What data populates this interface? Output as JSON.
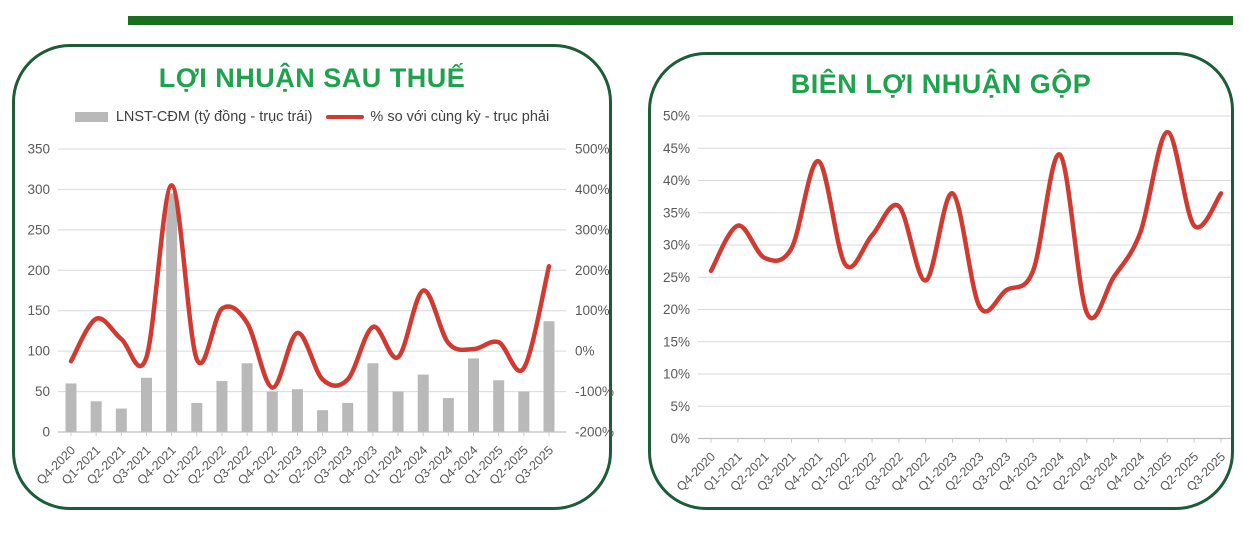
{
  "colors": {
    "top_bar": "#1b6e1f",
    "panel_border": "#1d5c38",
    "title_green": "#1ea24e",
    "bar_gray": "#b9b9b9",
    "line_red": "#d13a30",
    "grid": "#d9d9d9",
    "axis_line": "#bfbfbf",
    "tick": "#c8c8c8",
    "axis_text": "#595959"
  },
  "chart_data": [
    {
      "type": "bar",
      "title": "LỢI NHUẬN SAU THUẾ",
      "legend_position": "top",
      "grid": true,
      "categories": [
        "Q4-2020",
        "Q1-2021",
        "Q2-2021",
        "Q3-2021",
        "Q4-2021",
        "Q1-2022",
        "Q2-2022",
        "Q3-2022",
        "Q4-2022",
        "Q1-2023",
        "Q2-2023",
        "Q3-2023",
        "Q4-2023",
        "Q1-2024",
        "Q2-2024",
        "Q3-2024",
        "Q4-2024",
        "Q1-2025",
        "Q2-2025",
        "Q3-2025"
      ],
      "series": [
        {
          "name": "LNST-CĐM (tỷ đồng - trục trái)",
          "type": "bar",
          "axis": "left",
          "color": "#b9b9b9",
          "values": [
            60,
            38,
            29,
            67,
            295,
            36,
            63,
            85,
            50,
            53,
            27,
            36,
            85,
            50,
            71,
            42,
            91,
            64,
            50,
            137
          ]
        },
        {
          "name": "% so với cùng kỳ - trục phải",
          "type": "line",
          "axis": "right",
          "color": "#d13a30",
          "values": [
            -25,
            80,
            30,
            -15,
            410,
            -20,
            105,
            70,
            -90,
            45,
            -70,
            -70,
            60,
            -15,
            150,
            20,
            5,
            22,
            -42,
            210
          ]
        }
      ],
      "left_axis": {
        "min": 0,
        "max": 350,
        "step": 50,
        "suffix": ""
      },
      "right_axis": {
        "min": -200,
        "max": 500,
        "step": 100,
        "suffix": "%"
      }
    },
    {
      "type": "line",
      "title": "BIÊN LỢI NHUẬN GỘP",
      "grid": true,
      "categories": [
        "Q4-2020",
        "Q1-2021",
        "Q2-2021",
        "Q3-2021",
        "Q4-2021",
        "Q1-2022",
        "Q2-2022",
        "Q3-2022",
        "Q4-2022",
        "Q1-2023",
        "Q2-2023",
        "Q3-2023",
        "Q4-2023",
        "Q1-2024",
        "Q2-2024",
        "Q3-2024",
        "Q4-2024",
        "Q1-2025",
        "Q2-2025",
        "Q3-2025"
      ],
      "series": [
        {
          "type": "line",
          "axis": "left",
          "color": "#d13a30",
          "values": [
            26,
            33,
            28,
            29.5,
            43,
            27,
            31.5,
            36,
            24.5,
            38,
            20.5,
            23,
            26,
            44,
            19.5,
            25,
            32,
            47.5,
            33,
            38
          ]
        }
      ],
      "left_axis": {
        "min": 0,
        "max": 50,
        "step": 5,
        "suffix": "%"
      }
    }
  ]
}
